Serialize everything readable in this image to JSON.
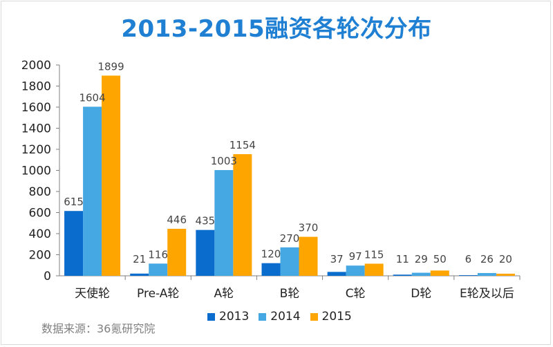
{
  "chart_data": {
    "type": "bar",
    "title": "2013-2015融资各轮次分布",
    "categories": [
      "天使轮",
      "Pre-A轮",
      "A轮",
      "B轮",
      "C轮",
      "D轮",
      "E轮及以后"
    ],
    "series": [
      {
        "name": "2013",
        "color": "#0a6ccd",
        "values": [
          615,
          21,
          435,
          120,
          37,
          11,
          6
        ]
      },
      {
        "name": "2014",
        "color": "#46a8e3",
        "values": [
          1604,
          116,
          1003,
          270,
          97,
          29,
          26
        ]
      },
      {
        "name": "2015",
        "color": "#ffa500",
        "values": [
          1899,
          446,
          1154,
          370,
          115,
          50,
          20
        ]
      }
    ],
    "ylim": [
      0,
      2000
    ],
    "yticks": [
      0,
      200,
      400,
      600,
      800,
      1000,
      1200,
      1400,
      1600,
      1800,
      2000
    ],
    "xlabel": "",
    "ylabel": "",
    "grid": false,
    "legend": "bottom"
  },
  "source": "数据来源：36氪研究院"
}
